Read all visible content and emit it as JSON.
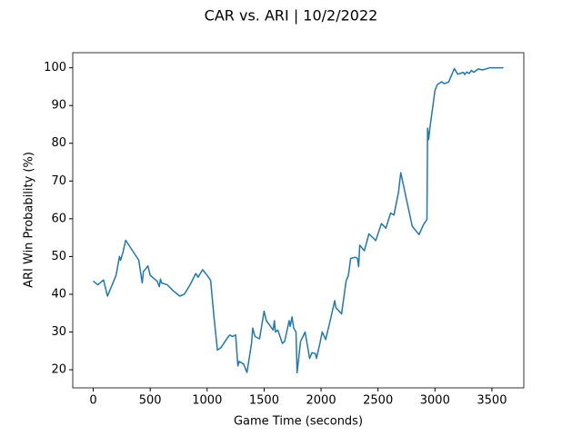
{
  "chart_data": {
    "type": "line",
    "title": "CAR vs. ARI | 10/2/2022",
    "x_label": "Game Time (seconds)",
    "y_label": "ARI Win Probability (%)",
    "xlim": [
      -180,
      3780
    ],
    "ylim": [
      15.2,
      104.0
    ],
    "xticks": [
      0,
      500,
      1000,
      1500,
      2000,
      2500,
      3000,
      3500
    ],
    "yticks": [
      20,
      30,
      40,
      50,
      60,
      70,
      80,
      90,
      100
    ],
    "series": [
      {
        "color": "#1f77b4",
        "x": [
          0,
          40,
          90,
          125,
          200,
          230,
          240,
          260,
          285,
          400,
          430,
          440,
          480,
          500,
          560,
          580,
          590,
          600,
          650,
          700,
          760,
          800,
          850,
          900,
          920,
          960,
          1000,
          1030,
          1060,
          1090,
          1120,
          1180,
          1200,
          1220,
          1250,
          1270,
          1280,
          1320,
          1350,
          1390,
          1400,
          1420,
          1460,
          1500,
          1520,
          1580,
          1590,
          1600,
          1620,
          1660,
          1680,
          1720,
          1730,
          1745,
          1760,
          1780,
          1790,
          1820,
          1860,
          1900,
          1920,
          1950,
          1960,
          1990,
          2010,
          2040,
          2080,
          2120,
          2130,
          2180,
          2220,
          2240,
          2260,
          2300,
          2320,
          2330,
          2340,
          2380,
          2420,
          2480,
          2530,
          2570,
          2610,
          2640,
          2680,
          2700,
          2800,
          2860,
          2900,
          2930,
          2935,
          2945,
          2955,
          3000,
          3020,
          3060,
          3080,
          3120,
          3170,
          3200,
          3250,
          3260,
          3280,
          3300,
          3320,
          3340,
          3380,
          3420,
          3480,
          3600
        ],
        "values": [
          43.5,
          42.5,
          43.8,
          39.5,
          45,
          50,
          49,
          51,
          54.3,
          49,
          43,
          46,
          47.5,
          45,
          43.5,
          42,
          44,
          43,
          42.5,
          41,
          39.5,
          40,
          42.5,
          45.5,
          44.5,
          46.5,
          45,
          43.7,
          34,
          25.2,
          25.8,
          28.5,
          29.2,
          28.8,
          29.2,
          21,
          22.2,
          21.5,
          19.3,
          27,
          31,
          28.8,
          28.2,
          35.5,
          33,
          30.5,
          33,
          30,
          30.5,
          27,
          27.5,
          33,
          31.5,
          34,
          31,
          30,
          19.2,
          27.5,
          30,
          23,
          24.5,
          24.3,
          23,
          27,
          30,
          28,
          33,
          38.3,
          36.5,
          34.8,
          43.5,
          45,
          49.5,
          49.8,
          49.5,
          47.3,
          53,
          51.5,
          56,
          54.2,
          58.7,
          57.5,
          61.5,
          61,
          67,
          72.2,
          58,
          55.8,
          58.5,
          59.8,
          84,
          81,
          84,
          94,
          95.5,
          96.3,
          95.8,
          96.2,
          99.8,
          98.3,
          98.8,
          98.2,
          98.9,
          98.5,
          99.3,
          98.8,
          99.7,
          99.4,
          100,
          100
        ]
      }
    ]
  }
}
